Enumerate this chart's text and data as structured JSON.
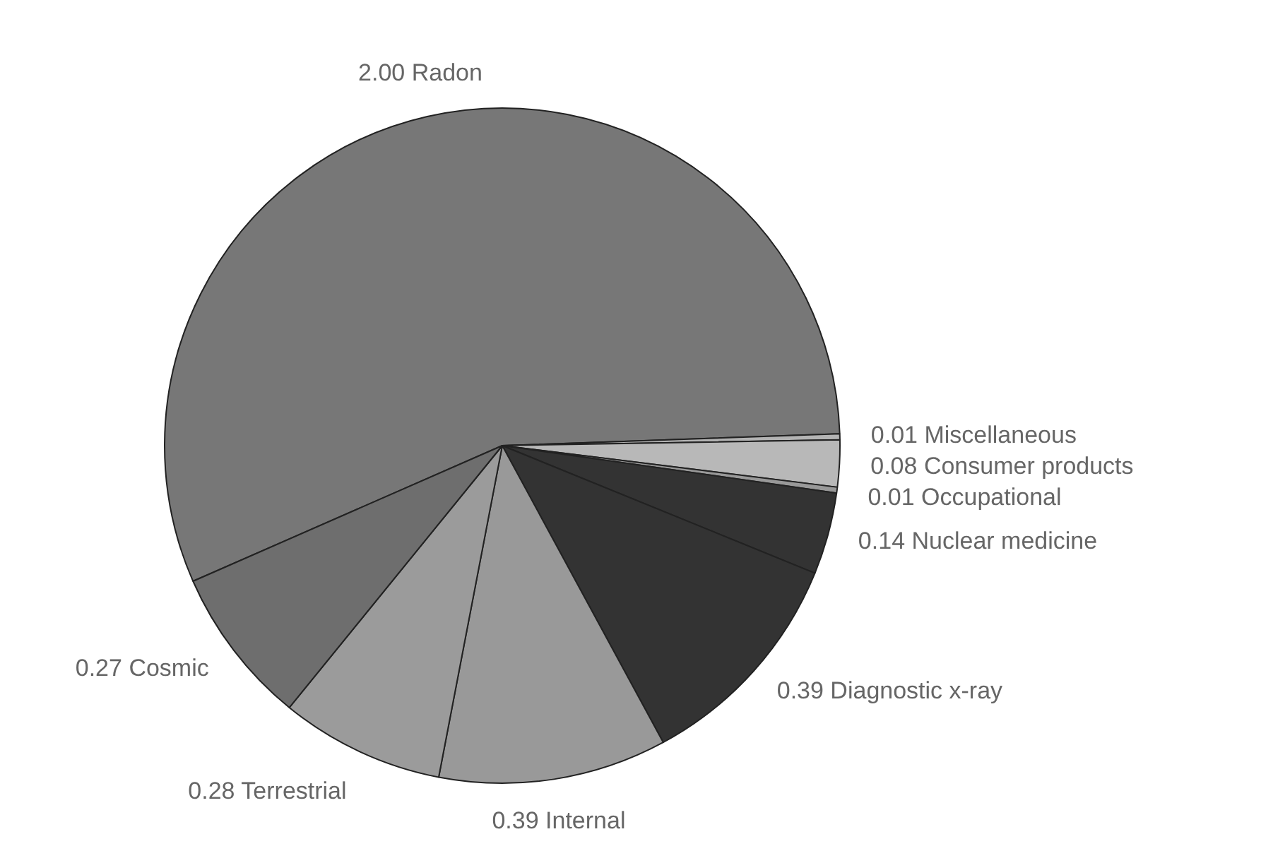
{
  "chart_data": {
    "type": "pie",
    "categories": [
      "Radon",
      "Miscellaneous",
      "Consumer products",
      "Occupational",
      "Nuclear medicine",
      "Diagnostic x-ray",
      "Internal",
      "Terrestrial",
      "Cosmic"
    ],
    "values": [
      2.0,
      0.01,
      0.08,
      0.01,
      0.14,
      0.39,
      0.39,
      0.28,
      0.27
    ],
    "value_labels": [
      "2.00",
      "0.01",
      "0.08",
      "0.01",
      "0.14",
      "0.39",
      "0.39",
      "0.28",
      "0.27"
    ],
    "colors": [
      "#777777",
      "#b3b3b3",
      "#b8b8b8",
      "#999999",
      "#333333",
      "#333333",
      "#999999",
      "#9b9b9b",
      "#6e6e6e"
    ],
    "legend": false
  }
}
